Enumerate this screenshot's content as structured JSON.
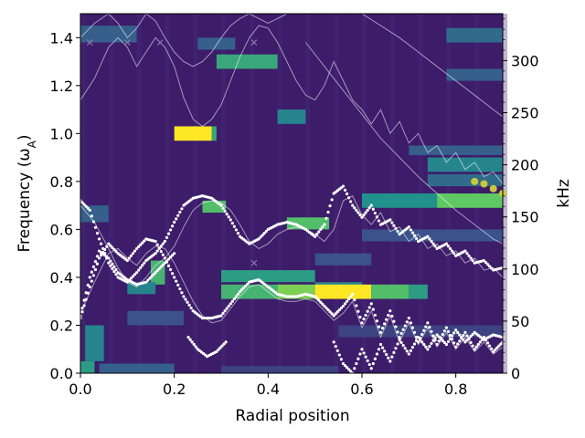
{
  "chart_data": {
    "type": "heatmap",
    "xlabel": "Radial position",
    "ylabel": "Frequency (ω",
    "ylabel_sub": "A",
    "ylabel_close": ")",
    "y2label": "kHz",
    "xlim": [
      0.0,
      0.9
    ],
    "ylim": [
      0.0,
      1.5
    ],
    "y2lim": [
      0,
      345
    ],
    "x_ticks": [
      0.0,
      0.2,
      0.4,
      0.6,
      0.8
    ],
    "x_tick_labels": [
      "0.0",
      "0.2",
      "0.4",
      "0.6",
      "0.8"
    ],
    "y_ticks": [
      0.0,
      0.2,
      0.4,
      0.6,
      0.8,
      1.0,
      1.2,
      1.4
    ],
    "y_tick_labels": [
      "0.0",
      "0.2",
      "0.4",
      "0.6",
      "0.8",
      "1.0",
      "1.2",
      "1.4"
    ],
    "y2_ticks": [
      0,
      50,
      100,
      150,
      200,
      250,
      300
    ],
    "y2_tick_labels": [
      "0",
      "50",
      "100",
      "150",
      "200",
      "250",
      "300"
    ],
    "colormap": "viridis",
    "background_color": "#3d1c6a",
    "grid": false,
    "intensity_bands": [
      {
        "x": [
          0.2,
          0.28
        ],
        "y": [
          0.97,
          1.03
        ],
        "level": 1.0
      },
      {
        "x": [
          0.28,
          0.29
        ],
        "y": [
          0.97,
          1.03
        ],
        "level": 0.6
      },
      {
        "x": [
          0.29,
          0.42
        ],
        "y": [
          1.27,
          1.33
        ],
        "level": 0.6
      },
      {
        "x": [
          0.25,
          0.33
        ],
        "y": [
          1.35,
          1.4
        ],
        "level": 0.3
      },
      {
        "x": [
          0.42,
          0.48
        ],
        "y": [
          1.04,
          1.1
        ],
        "level": 0.45
      },
      {
        "x": [
          0.26,
          0.31
        ],
        "y": [
          0.67,
          0.72
        ],
        "level": 0.7
      },
      {
        "x": [
          0.44,
          0.53
        ],
        "y": [
          0.6,
          0.65
        ],
        "level": 0.7
      },
      {
        "x": [
          0.3,
          0.5
        ],
        "y": [
          0.38,
          0.43
        ],
        "level": 0.55
      },
      {
        "x": [
          0.5,
          0.6
        ],
        "y": [
          0.34,
          0.38
        ],
        "level": 0.45
      },
      {
        "x": [
          0.3,
          0.42
        ],
        "y": [
          0.31,
          0.37
        ],
        "level": 0.65
      },
      {
        "x": [
          0.42,
          0.5
        ],
        "y": [
          0.31,
          0.37
        ],
        "level": 0.8
      },
      {
        "x": [
          0.5,
          0.62
        ],
        "y": [
          0.31,
          0.37
        ],
        "level": 1.0
      },
      {
        "x": [
          0.62,
          0.7
        ],
        "y": [
          0.31,
          0.37
        ],
        "level": 0.7
      },
      {
        "x": [
          0.7,
          0.74
        ],
        "y": [
          0.31,
          0.37
        ],
        "level": 0.55
      },
      {
        "x": [
          0.15,
          0.18
        ],
        "y": [
          0.37,
          0.47
        ],
        "level": 0.65
      },
      {
        "x": [
          0.1,
          0.16
        ],
        "y": [
          0.33,
          0.38
        ],
        "level": 0.45
      },
      {
        "x": [
          0.6,
          0.76
        ],
        "y": [
          0.69,
          0.75
        ],
        "level": 0.5
      },
      {
        "x": [
          0.76,
          0.9
        ],
        "y": [
          0.69,
          0.75
        ],
        "level": 0.75
      },
      {
        "x": [
          0.74,
          0.9
        ],
        "y": [
          0.84,
          0.9
        ],
        "level": 0.45
      },
      {
        "x": [
          0.7,
          0.9
        ],
        "y": [
          0.91,
          0.95
        ],
        "level": 0.3
      },
      {
        "x": [
          0.74,
          0.9
        ],
        "y": [
          0.78,
          0.83
        ],
        "level": 0.35
      },
      {
        "x": [
          0.0,
          0.03
        ],
        "y": [
          0.0,
          0.05
        ],
        "level": 0.55
      },
      {
        "x": [
          0.01,
          0.05
        ],
        "y": [
          0.05,
          0.2
        ],
        "level": 0.45
      },
      {
        "x": [
          0.04,
          0.2
        ],
        "y": [
          0.0,
          0.04
        ],
        "level": 0.3
      },
      {
        "x": [
          0.3,
          0.55
        ],
        "y": [
          0.0,
          0.03
        ],
        "level": 0.2
      },
      {
        "x": [
          0.0,
          0.12
        ],
        "y": [
          1.38,
          1.45
        ],
        "level": 0.3
      },
      {
        "x": [
          0.78,
          0.9
        ],
        "y": [
          1.38,
          1.44
        ],
        "level": 0.35
      },
      {
        "x": [
          0.78,
          0.9
        ],
        "y": [
          1.22,
          1.27
        ],
        "level": 0.3
      },
      {
        "x": [
          0.1,
          0.22
        ],
        "y": [
          0.2,
          0.26
        ],
        "level": 0.25
      },
      {
        "x": [
          0.5,
          0.62
        ],
        "y": [
          0.45,
          0.5
        ],
        "level": 0.25
      },
      {
        "x": [
          0.6,
          0.9
        ],
        "y": [
          0.55,
          0.6
        ],
        "level": 0.25
      },
      {
        "x": [
          0.55,
          0.9
        ],
        "y": [
          0.15,
          0.2
        ],
        "level": 0.2
      },
      {
        "x": [
          0.0,
          0.06
        ],
        "y": [
          0.63,
          0.7
        ],
        "level": 0.3
      }
    ],
    "series": [
      {
        "marker": "white-dots",
        "x": [
          0.0,
          0.02,
          0.04,
          0.06,
          0.08,
          0.1,
          0.12,
          0.14,
          0.16,
          0.18,
          0.2,
          0.22,
          0.24,
          0.26,
          0.28,
          0.3,
          0.32,
          0.34,
          0.36,
          0.38,
          0.4,
          0.42,
          0.44,
          0.46,
          0.48,
          0.5,
          0.52,
          0.54,
          0.56,
          0.58,
          0.6,
          0.62,
          0.64,
          0.66,
          0.68,
          0.7,
          0.72,
          0.74,
          0.76,
          0.78,
          0.8,
          0.82,
          0.84,
          0.86,
          0.88,
          0.9
        ],
        "y": [
          0.72,
          0.68,
          0.56,
          0.46,
          0.4,
          0.38,
          0.42,
          0.47,
          0.5,
          0.55,
          0.63,
          0.7,
          0.73,
          0.74,
          0.73,
          0.7,
          0.64,
          0.57,
          0.54,
          0.56,
          0.6,
          0.62,
          0.63,
          0.62,
          0.6,
          0.57,
          0.62,
          0.75,
          0.78,
          0.7,
          0.65,
          0.7,
          0.62,
          0.64,
          0.58,
          0.61,
          0.55,
          0.57,
          0.52,
          0.54,
          0.49,
          0.51,
          0.46,
          0.47,
          0.43,
          0.44
        ]
      },
      {
        "marker": "white-dots",
        "x": [
          0.0,
          0.02,
          0.04,
          0.06,
          0.08,
          0.1,
          0.12,
          0.14,
          0.16,
          0.18,
          0.2,
          0.22,
          0.24,
          0.26,
          0.28,
          0.3,
          0.32,
          0.34,
          0.36,
          0.38,
          0.4,
          0.42,
          0.44,
          0.46,
          0.48,
          0.5,
          0.52,
          0.54,
          0.56,
          0.58,
          0.6,
          0.62,
          0.64,
          0.66,
          0.68,
          0.7,
          0.72,
          0.74,
          0.76,
          0.78,
          0.8,
          0.82,
          0.84,
          0.86,
          0.88,
          0.9
        ],
        "y": [
          0.23,
          0.36,
          0.48,
          0.54,
          0.5,
          0.47,
          0.52,
          0.56,
          0.55,
          0.48,
          0.4,
          0.32,
          0.26,
          0.23,
          0.23,
          0.24,
          0.29,
          0.34,
          0.38,
          0.39,
          0.36,
          0.33,
          0.32,
          0.32,
          0.33,
          0.32,
          0.28,
          0.24,
          0.28,
          0.33,
          0.21,
          0.29,
          0.17,
          0.26,
          0.15,
          0.23,
          0.13,
          0.21,
          0.12,
          0.19,
          0.11,
          0.17,
          0.1,
          0.15,
          0.09,
          0.13
        ]
      },
      {
        "marker": "white-dots",
        "x": [
          0.0,
          0.02,
          0.04,
          0.06,
          0.08,
          0.1,
          0.12,
          0.14,
          0.16,
          0.18,
          0.2
        ],
        "y": [
          0.24,
          0.4,
          0.51,
          0.48,
          0.42,
          0.39,
          0.37,
          0.38,
          0.42,
          0.46,
          0.5
        ]
      },
      {
        "marker": "white-dots",
        "x": [
          0.23,
          0.25,
          0.27,
          0.29,
          0.31
        ],
        "y": [
          0.15,
          0.1,
          0.07,
          0.09,
          0.13
        ]
      },
      {
        "marker": "white-dots",
        "x": [
          0.54,
          0.56,
          0.58,
          0.6,
          0.62,
          0.64,
          0.66,
          0.68,
          0.7,
          0.72,
          0.74,
          0.76,
          0.78,
          0.8,
          0.82,
          0.84,
          0.86,
          0.88,
          0.9
        ],
        "y": [
          0.13,
          0.04,
          0.0,
          0.1,
          0.02,
          0.12,
          0.05,
          0.14,
          0.08,
          0.15,
          0.1,
          0.16,
          0.12,
          0.18,
          0.13,
          0.17,
          0.14,
          0.16,
          0.15
        ]
      },
      {
        "marker": "white-line",
        "x": [
          0.0,
          0.03,
          0.06,
          0.08,
          0.1,
          0.12,
          0.14,
          0.16,
          0.18,
          0.2,
          0.22,
          0.24,
          0.26,
          0.28,
          0.3,
          0.32,
          0.34,
          0.36,
          0.38,
          0.4,
          0.42,
          0.44,
          0.46,
          0.48,
          0.5,
          0.52,
          0.54,
          0.56,
          0.58,
          0.6,
          0.62,
          0.64,
          0.66,
          0.68,
          0.7,
          0.72,
          0.74,
          0.76,
          0.78,
          0.8,
          0.82,
          0.84,
          0.86,
          0.88,
          0.9
        ],
        "y": [
          1.14,
          1.23,
          1.36,
          1.4,
          1.36,
          1.28,
          1.34,
          1.4,
          1.36,
          1.28,
          1.15,
          1.06,
          1.03,
          1.06,
          1.12,
          1.22,
          1.32,
          1.4,
          1.45,
          1.44,
          1.38,
          1.3,
          1.22,
          1.16,
          1.14,
          1.2,
          1.3,
          1.22,
          1.14,
          1.1,
          1.04,
          1.1,
          1.0,
          1.05,
          0.96,
          1.0,
          0.92,
          0.95,
          0.88,
          0.92,
          0.85,
          0.88,
          0.82,
          0.84,
          0.79
        ]
      },
      {
        "marker": "white-line",
        "x": [
          0.0,
          0.03,
          0.06,
          0.08,
          0.1,
          0.12,
          0.14,
          0.16,
          0.18,
          0.2,
          0.22,
          0.24,
          0.26,
          0.28,
          0.3,
          0.32,
          0.34,
          0.36,
          0.38,
          0.4,
          0.42,
          0.44
        ],
        "y": [
          1.4,
          1.46,
          1.5,
          1.46,
          1.4,
          1.44,
          1.5,
          1.47,
          1.4,
          1.34,
          1.3,
          1.28,
          1.3,
          1.34,
          1.4,
          1.45,
          1.48,
          1.5,
          1.48,
          1.46,
          1.48,
          1.5
        ]
      },
      {
        "marker": "white-line",
        "x": [
          0.0,
          0.03,
          0.06,
          0.08,
          0.1,
          0.12,
          0.14,
          0.16,
          0.18,
          0.2,
          0.22,
          0.24,
          0.26,
          0.28,
          0.3,
          0.32,
          0.34,
          0.36,
          0.38,
          0.4,
          0.42,
          0.44,
          0.46,
          0.48,
          0.5,
          0.52,
          0.54,
          0.56,
          0.58,
          0.6,
          0.62,
          0.64,
          0.66,
          0.68,
          0.7,
          0.72,
          0.74,
          0.76,
          0.78,
          0.8,
          0.82,
          0.84,
          0.86,
          0.88,
          0.9
        ],
        "y": [
          0.7,
          0.63,
          0.52,
          0.44,
          0.38,
          0.36,
          0.4,
          0.45,
          0.48,
          0.53,
          0.61,
          0.68,
          0.71,
          0.72,
          0.71,
          0.68,
          0.62,
          0.55,
          0.52,
          0.54,
          0.58,
          0.6,
          0.61,
          0.6,
          0.58,
          0.55,
          0.6,
          0.72,
          0.74,
          0.66,
          0.62,
          0.67,
          0.59,
          0.61,
          0.55,
          0.58,
          0.52,
          0.54,
          0.49,
          0.51,
          0.46,
          0.48,
          0.43,
          0.44,
          0.4
        ]
      },
      {
        "marker": "white-line",
        "x": [
          0.0,
          0.03,
          0.06,
          0.08,
          0.1,
          0.12,
          0.14,
          0.16,
          0.18,
          0.2,
          0.22,
          0.24,
          0.26,
          0.28,
          0.3,
          0.32,
          0.34,
          0.36,
          0.38,
          0.4,
          0.42,
          0.44,
          0.46,
          0.48,
          0.5,
          0.52,
          0.54,
          0.56,
          0.58,
          0.6,
          0.62,
          0.64,
          0.66,
          0.68,
          0.7,
          0.72,
          0.74,
          0.76,
          0.78,
          0.8,
          0.82,
          0.84,
          0.86,
          0.88,
          0.9
        ],
        "y": [
          0.25,
          0.38,
          0.5,
          0.52,
          0.48,
          0.45,
          0.5,
          0.53,
          0.52,
          0.46,
          0.38,
          0.3,
          0.24,
          0.21,
          0.22,
          0.27,
          0.32,
          0.36,
          0.37,
          0.34,
          0.31,
          0.3,
          0.3,
          0.31,
          0.3,
          0.26,
          0.22,
          0.25,
          0.3,
          0.19,
          0.26,
          0.15,
          0.24,
          0.13,
          0.21,
          0.12,
          0.19,
          0.11,
          0.17,
          0.1,
          0.15,
          0.09,
          0.13,
          0.08,
          0.11
        ]
      },
      {
        "marker": "white-line",
        "x": [
          0.48,
          0.52,
          0.56,
          0.6,
          0.64,
          0.68,
          0.72,
          0.76,
          0.8,
          0.84,
          0.88,
          0.9
        ],
        "y": [
          1.38,
          1.28,
          1.18,
          1.08,
          0.98,
          0.9,
          0.82,
          0.75,
          0.68,
          0.62,
          0.56,
          0.54
        ]
      },
      {
        "marker": "white-line",
        "x": [
          0.6,
          0.64,
          0.68,
          0.72,
          0.76,
          0.8,
          0.84,
          0.88,
          0.9
        ],
        "y": [
          1.5,
          1.45,
          1.4,
          1.34,
          1.28,
          1.22,
          1.16,
          1.1,
          1.07
        ]
      }
    ],
    "cross_markers": {
      "x": [
        0.02,
        0.1,
        0.17,
        0.37,
        0.37
      ],
      "y": [
        1.38,
        1.38,
        1.38,
        1.38,
        0.46
      ]
    },
    "yellow_markers": {
      "x": [
        0.84,
        0.86,
        0.88,
        0.9
      ],
      "y": [
        0.8,
        0.79,
        0.77,
        0.75
      ]
    }
  }
}
